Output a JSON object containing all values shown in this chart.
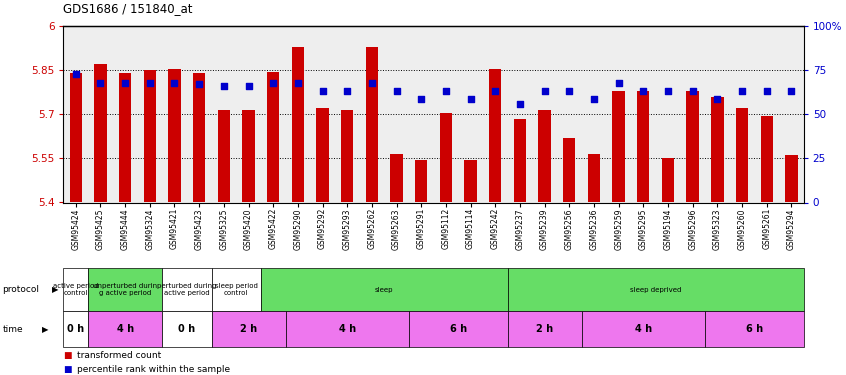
{
  "title": "GDS1686 / 151840_at",
  "samples": [
    "GSM95424",
    "GSM95425",
    "GSM95444",
    "GSM95324",
    "GSM95421",
    "GSM95423",
    "GSM95325",
    "GSM95420",
    "GSM95422",
    "GSM95290",
    "GSM95292",
    "GSM95293",
    "GSM95262",
    "GSM95263",
    "GSM95291",
    "GSM95112",
    "GSM95114",
    "GSM95242",
    "GSM95237",
    "GSM95239",
    "GSM95256",
    "GSM95236",
    "GSM95259",
    "GSM95295",
    "GSM95194",
    "GSM95296",
    "GSM95323",
    "GSM95260",
    "GSM95261",
    "GSM95294"
  ],
  "bar_values": [
    5.84,
    5.87,
    5.84,
    5.85,
    5.855,
    5.84,
    5.715,
    5.715,
    5.845,
    5.93,
    5.72,
    5.715,
    5.93,
    5.565,
    5.545,
    5.705,
    5.545,
    5.855,
    5.685,
    5.715,
    5.62,
    5.565,
    5.78,
    5.78,
    5.55,
    5.78,
    5.76,
    5.72,
    5.695,
    5.56
  ],
  "dot_values": [
    73,
    68,
    68,
    68,
    68,
    67,
    66,
    66,
    68,
    68,
    63,
    63,
    68,
    63,
    59,
    63,
    59,
    63,
    56,
    63,
    63,
    59,
    68,
    63,
    63,
    63,
    59,
    63,
    63,
    63
  ],
  "ylim_left": [
    5.4,
    6.0
  ],
  "ylim_right": [
    0,
    100
  ],
  "yticks_left": [
    5.4,
    5.55,
    5.7,
    5.85,
    6.0
  ],
  "yticks_left_labels": [
    "5.4",
    "5.55",
    "5.7",
    "5.85",
    "6"
  ],
  "yticks_right": [
    0,
    25,
    50,
    75,
    100
  ],
  "yticks_right_labels": [
    "0",
    "25",
    "50",
    "75",
    "100%"
  ],
  "hlines": [
    5.55,
    5.7,
    5.85
  ],
  "bar_color": "#cc0000",
  "dot_color": "#0000cc",
  "plot_bg": "#eeeeee",
  "protocol_groups": [
    {
      "text": "active period\ncontrol",
      "start": 0,
      "end": 1,
      "color": "#ffffff"
    },
    {
      "text": "unperturbed durin\ng active period",
      "start": 1,
      "end": 4,
      "color": "#66dd66"
    },
    {
      "text": "perturbed during\nactive period",
      "start": 4,
      "end": 6,
      "color": "#ffffff"
    },
    {
      "text": "sleep period\ncontrol",
      "start": 6,
      "end": 8,
      "color": "#ffffff"
    },
    {
      "text": "sleep",
      "start": 8,
      "end": 18,
      "color": "#66dd66"
    },
    {
      "text": "sleep deprived",
      "start": 18,
      "end": 30,
      "color": "#66dd66"
    }
  ],
  "time_groups": [
    {
      "text": "0 h",
      "start": 0,
      "end": 1,
      "color": "#ffffff"
    },
    {
      "text": "4 h",
      "start": 1,
      "end": 4,
      "color": "#ee77ee"
    },
    {
      "text": "0 h",
      "start": 4,
      "end": 6,
      "color": "#ffffff"
    },
    {
      "text": "2 h",
      "start": 6,
      "end": 9,
      "color": "#ee77ee"
    },
    {
      "text": "4 h",
      "start": 9,
      "end": 14,
      "color": "#ee77ee"
    },
    {
      "text": "6 h",
      "start": 14,
      "end": 18,
      "color": "#ee77ee"
    },
    {
      "text": "2 h",
      "start": 18,
      "end": 21,
      "color": "#ee77ee"
    },
    {
      "text": "4 h",
      "start": 21,
      "end": 26,
      "color": "#ee77ee"
    },
    {
      "text": "6 h",
      "start": 26,
      "end": 30,
      "color": "#ee77ee"
    }
  ],
  "legend_items": [
    {
      "color": "#cc0000",
      "label": "transformed count"
    },
    {
      "color": "#0000cc",
      "label": "percentile rank within the sample"
    }
  ]
}
